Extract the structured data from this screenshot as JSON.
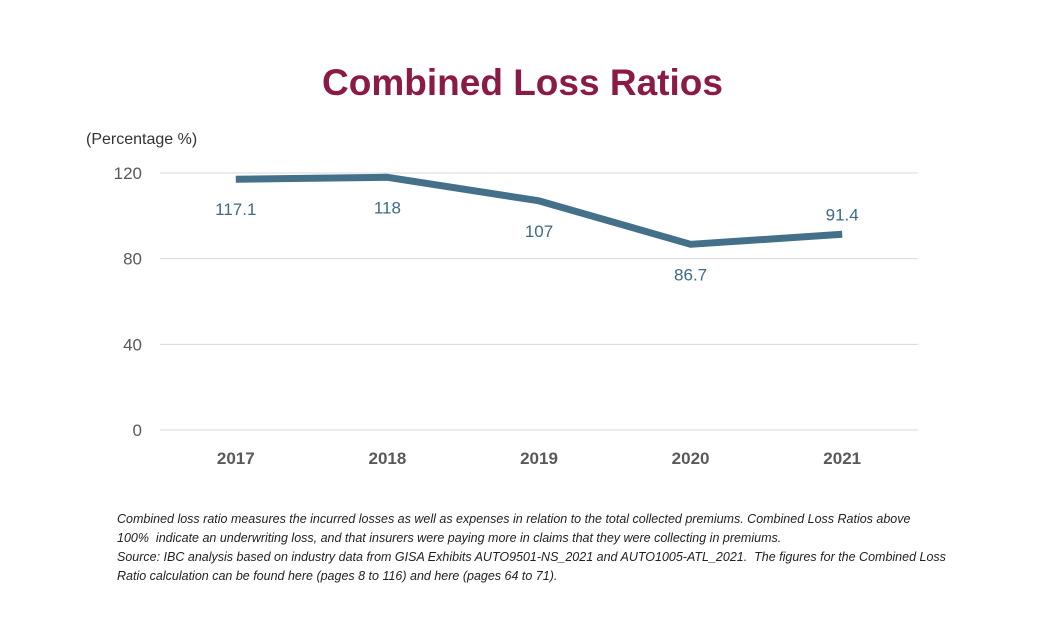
{
  "chart_data": {
    "type": "line",
    "title": "Combined Loss Ratios",
    "ylabel": "(Percentage %)",
    "xlabel": "",
    "categories": [
      "2017",
      "2018",
      "2019",
      "2020",
      "2021"
    ],
    "series": [
      {
        "values": [
          117.1,
          118,
          107,
          86.7,
          91.4
        ],
        "labels": [
          "117.1",
          "118",
          "107",
          "86.7",
          "91.4"
        ]
      }
    ],
    "yticks": [
      0,
      40,
      80,
      120
    ],
    "ylim": [
      0,
      120
    ],
    "grid": true,
    "legend": "none",
    "colors": {
      "line": "#44708a",
      "data_label": "#3d6a84",
      "grid": "#d9d9d9",
      "title": "#8b1a47"
    }
  },
  "footnote": {
    "line1": "Combined loss ratio measures the incurred losses as well as expenses in relation to the total collected premiums. Combined Loss Ratios above",
    "line2": "100%  indicate an underwriting loss, and that insurers were paying more in claims that they were collecting in premiums.",
    "line3": "Source: IBC analysis based on industry data from GISA Exhibits AUTO9501-NS_2021 and AUTO1005-ATL_2021.  The figures for the Combined Loss",
    "line4": "Ratio calculation can be found here (pages 8 to 116) and here (pages 64 to 71)."
  }
}
